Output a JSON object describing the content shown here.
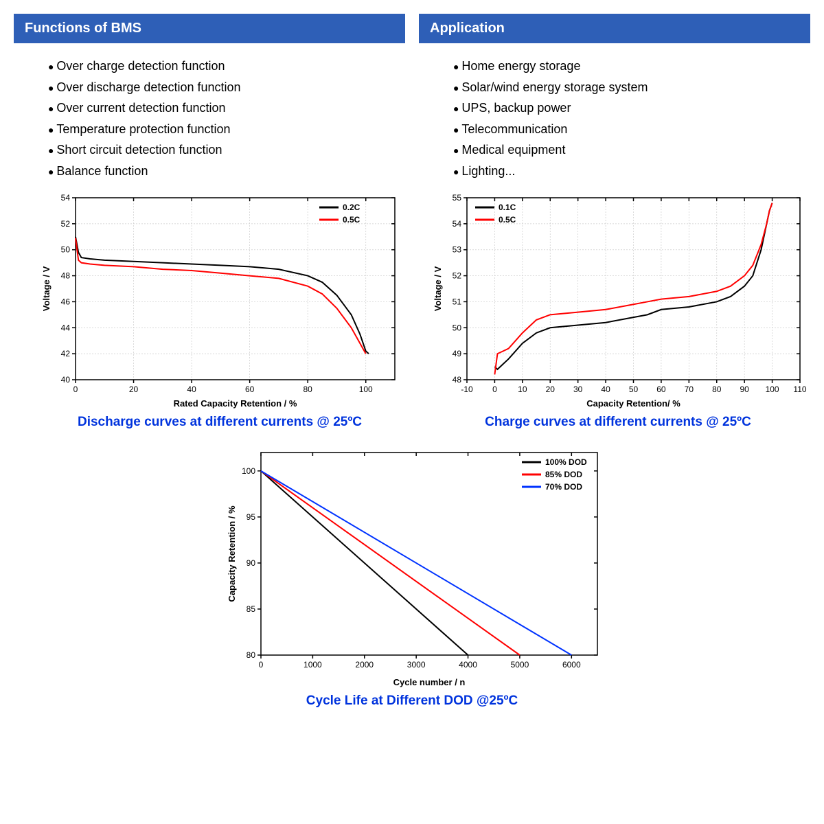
{
  "sections": {
    "functions": {
      "title": "Functions of BMS",
      "items": [
        "Over charge detection function",
        "Over discharge detection function",
        "Over current detection function",
        "Temperature protection function",
        "Short circuit detection function",
        "Balance function"
      ]
    },
    "application": {
      "title": "Application",
      "items": [
        "Home energy storage",
        "Solar/wind energy storage system",
        "UPS, backup power",
        "Telecommunication",
        "Medical equipment",
        "Lighting..."
      ]
    }
  },
  "charts": {
    "discharge": {
      "type": "line",
      "caption": "Discharge curves at different currents @ 25ºC",
      "xlabel": "Rated Capacity Retention / %",
      "ylabel": "Voltage / V",
      "xlim": [
        0,
        110
      ],
      "xtick_step": 20,
      "ylim": [
        40,
        54
      ],
      "ytick_step": 2,
      "grid": true,
      "grid_color": "#cccccc",
      "background_color": "#ffffff",
      "line_width": 2,
      "series": [
        {
          "name": "0.2C",
          "color": "#000000",
          "x": [
            0,
            1,
            2,
            5,
            10,
            20,
            30,
            40,
            50,
            60,
            70,
            80,
            85,
            90,
            95,
            98,
            100,
            101
          ],
          "y": [
            51.0,
            49.8,
            49.4,
            49.3,
            49.2,
            49.1,
            49.0,
            48.9,
            48.8,
            48.7,
            48.5,
            48.0,
            47.5,
            46.5,
            45.0,
            43.5,
            42.2,
            42.0
          ]
        },
        {
          "name": "0.5C",
          "color": "#ff0000",
          "x": [
            0,
            1,
            2,
            5,
            10,
            20,
            30,
            40,
            50,
            60,
            70,
            80,
            85,
            90,
            95,
            98,
            100
          ],
          "y": [
            50.9,
            49.2,
            49.0,
            48.9,
            48.8,
            48.7,
            48.5,
            48.4,
            48.2,
            48.0,
            47.8,
            47.2,
            46.6,
            45.5,
            44.0,
            42.8,
            42.0
          ]
        }
      ],
      "legend_pos": "top-right"
    },
    "charge": {
      "type": "line",
      "caption": "Charge curves at different currents @ 25ºC",
      "xlabel": "Capacity Retention/ %",
      "ylabel": "Voltage / V",
      "xlim": [
        -10,
        110
      ],
      "xtick_step": 10,
      "ylim": [
        48,
        55
      ],
      "ytick_step": 1,
      "grid": true,
      "grid_color": "#cccccc",
      "background_color": "#ffffff",
      "line_width": 2,
      "series": [
        {
          "name": "0.1C",
          "color": "#000000",
          "x": [
            0,
            1,
            3,
            5,
            10,
            15,
            20,
            30,
            40,
            50,
            55,
            60,
            70,
            80,
            85,
            90,
            93,
            96,
            98,
            99,
            100
          ],
          "y": [
            48.5,
            48.4,
            48.6,
            48.8,
            49.4,
            49.8,
            50.0,
            50.1,
            50.2,
            50.4,
            50.5,
            50.7,
            50.8,
            51.0,
            51.2,
            51.6,
            52.0,
            53.0,
            54.0,
            54.5,
            54.8
          ]
        },
        {
          "name": "0.5C",
          "color": "#ff0000",
          "x": [
            0,
            1,
            3,
            5,
            10,
            15,
            20,
            30,
            40,
            50,
            55,
            60,
            70,
            80,
            85,
            90,
            93,
            96,
            98,
            99,
            100
          ],
          "y": [
            48.2,
            49.0,
            49.1,
            49.2,
            49.8,
            50.3,
            50.5,
            50.6,
            50.7,
            50.9,
            51.0,
            51.1,
            51.2,
            51.4,
            51.6,
            52.0,
            52.4,
            53.2,
            54.0,
            54.5,
            54.8
          ]
        }
      ],
      "legend_pos": "top-left"
    },
    "cycle": {
      "type": "line",
      "caption": "Cycle Life at Different DOD @25ºC",
      "xlabel": "Cycle number / n",
      "ylabel": "Capacity Retention / %",
      "xlim": [
        0,
        6500
      ],
      "xtick_step": 1000,
      "ylim": [
        80,
        102
      ],
      "ytick_step": 5,
      "grid": false,
      "background_color": "#ffffff",
      "line_width": 2,
      "series": [
        {
          "name": "100% DOD",
          "color": "#000000",
          "x": [
            0,
            4000
          ],
          "y": [
            100,
            80
          ]
        },
        {
          "name": "85% DOD",
          "color": "#ff0000",
          "x": [
            0,
            5000
          ],
          "y": [
            100,
            80
          ]
        },
        {
          "name": "70% DOD",
          "color": "#0033ff",
          "x": [
            0,
            6000
          ],
          "y": [
            100,
            80
          ]
        }
      ],
      "legend_pos": "top-right"
    }
  },
  "style": {
    "header_bg": "#2e5fb7",
    "caption_color": "#0033dd"
  }
}
